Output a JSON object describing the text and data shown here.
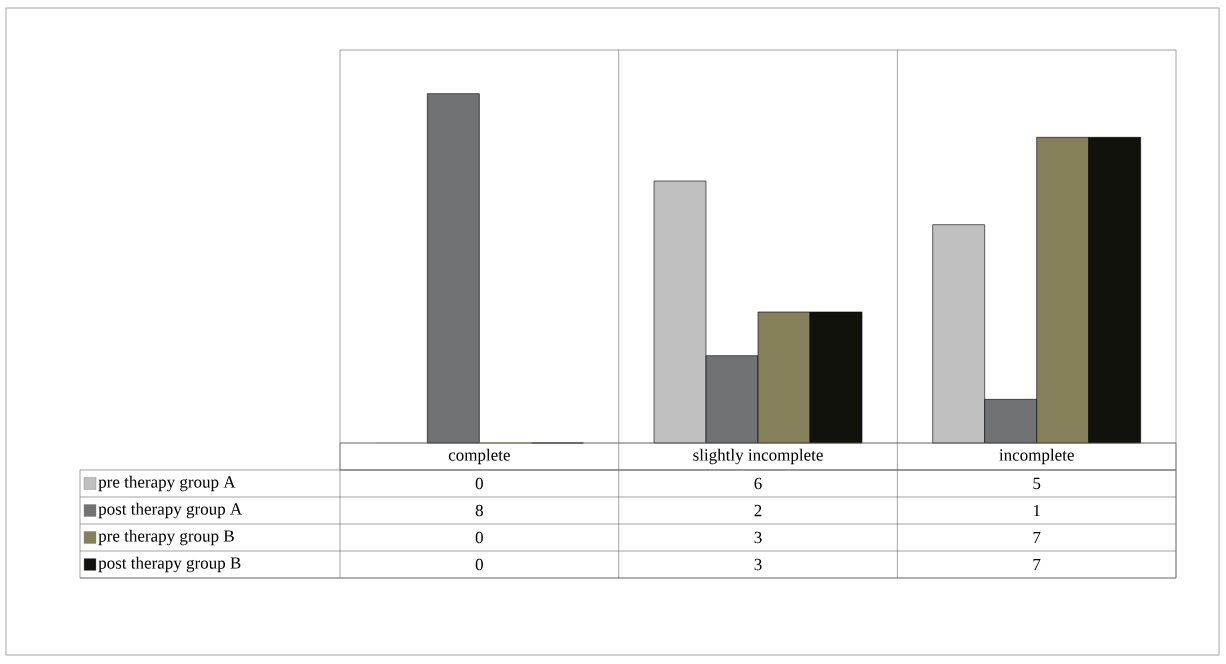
{
  "chart_data": {
    "type": "bar",
    "categories": [
      "complete",
      "slightly incomplete",
      "incomplete"
    ],
    "series": [
      {
        "name": "pre therapy group A",
        "color": "#c0c0c0",
        "values": [
          0,
          6,
          5
        ]
      },
      {
        "name": "post therapy group A",
        "color": "#707274",
        "values": [
          8,
          2,
          1
        ]
      },
      {
        "name": "pre therapy group B",
        "color": "#857f5a",
        "values": [
          0,
          3,
          7
        ]
      },
      {
        "name": "post therapy group B",
        "color": "#12120c",
        "values": [
          0,
          3,
          7
        ]
      }
    ],
    "ylim": [
      0,
      9
    ],
    "data_labels": true,
    "legend": "bottom left"
  }
}
